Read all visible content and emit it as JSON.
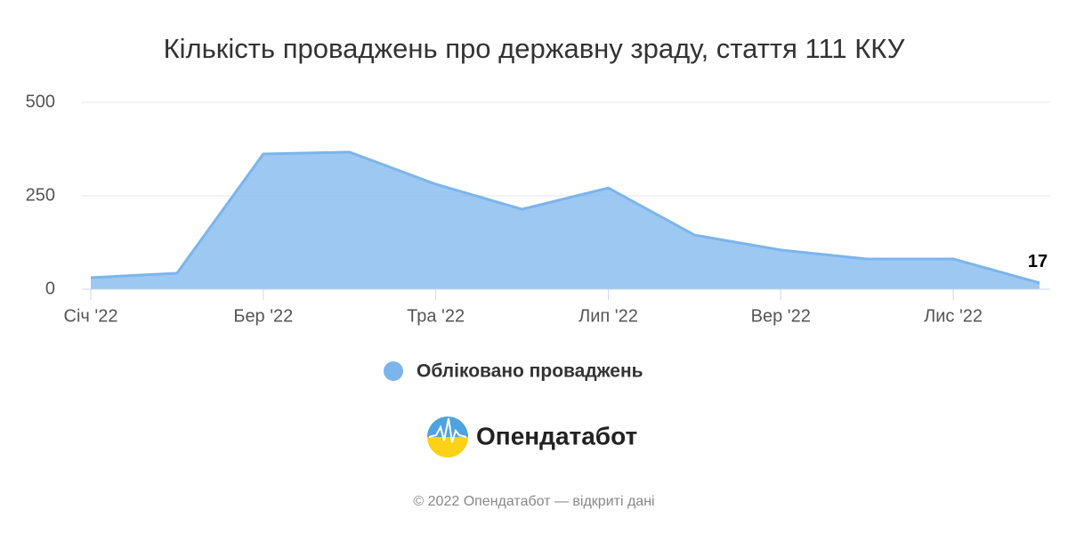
{
  "chart_data": {
    "type": "area",
    "title": "Кількість проваджень про державну зраду, стаття 111 ККУ",
    "categories": [
      "Січ '22",
      null,
      "Бер '22",
      null,
      "Тра '22",
      null,
      "Лип '22",
      null,
      "Вер '22",
      null,
      "Лис '22",
      null
    ],
    "series": [
      {
        "name": "Обліковано проваджень",
        "color": "#7cb5ec",
        "values": [
          31,
          43,
          362,
          367,
          281,
          214,
          271,
          145,
          105,
          81,
          81,
          17
        ]
      }
    ],
    "ylim": [
      0,
      500
    ],
    "yticks": [
      0,
      250,
      500
    ],
    "grid": true
  },
  "logo": "Опендатабот",
  "footer": "© 2022 Опендатабот — відкриті дані"
}
